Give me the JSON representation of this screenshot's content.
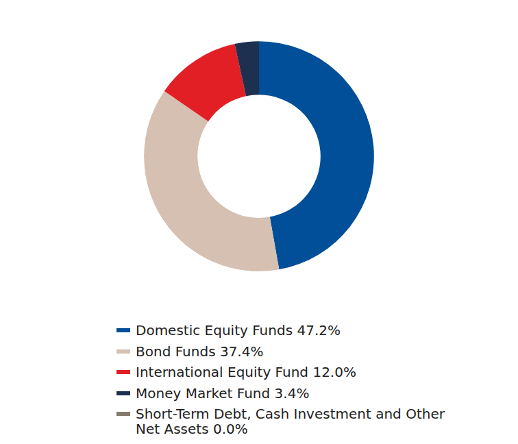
{
  "chart_data": {
    "type": "pie",
    "categories": [
      "Domestic Equity Funds 47.2%",
      "Bond Funds 37.4%",
      "International Equity Fund 12.0%",
      "Money Market Fund 3.4%",
      "Short-Term Debt, Cash Investment and Other Net Assets 0.0%"
    ],
    "values": [
      47.2,
      37.4,
      12.0,
      3.4,
      0.0
    ],
    "colors": [
      "#004f98",
      "#d5c0b2",
      "#e31f26",
      "#1e3050",
      "#857b6a"
    ],
    "legend": "bottom",
    "data_labels": false
  }
}
